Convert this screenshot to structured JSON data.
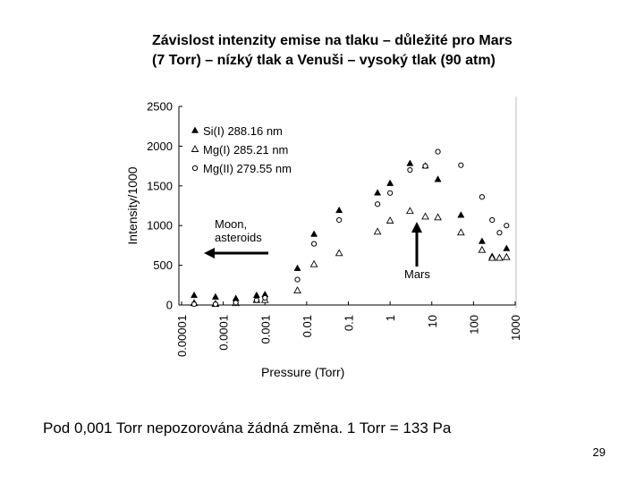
{
  "chart_data": {
    "type": "scatter",
    "title": [
      "Závislost intenzity emise na tlaku – důležité pro Mars",
      "(7 Torr) – nízký tlak a Venuši – vysoký tlak (90 atm)"
    ],
    "x_label": "Pressure (Torr)",
    "y_label": "Intensity/1000",
    "log_x": true,
    "xlim": [
      1e-05,
      1000
    ],
    "xticks": [
      1e-05,
      0.0001,
      0.001,
      0.01,
      0.1,
      1,
      10,
      100,
      1000
    ],
    "ylim": [
      0,
      2500
    ],
    "yticks": [
      0,
      500,
      1000,
      1500,
      2000,
      2500
    ],
    "legend": "top-left",
    "annotations": [
      [
        "Moon,",
        "asteroids"
      ],
      [
        "Mars"
      ]
    ],
    "series": [
      {
        "name": "Si(I) 288.16 nm",
        "color": "#000000",
        "marker": "triangle-filled",
        "x": [
          2e-05,
          6.5e-05,
          0.0002,
          0.00063,
          0.001,
          0.006,
          0.015,
          0.06,
          0.5,
          1,
          3,
          7,
          14,
          50,
          160,
          280,
          620
        ],
        "values": [
          120,
          100,
          80,
          120,
          130,
          460,
          890,
          1190,
          1410,
          1530,
          1780,
          1750,
          1580,
          1130,
          800,
          610,
          710
        ]
      },
      {
        "name": "Mg(I) 285.21 nm",
        "color": "#000000",
        "marker": "triangle-open",
        "x": [
          2e-05,
          6.5e-05,
          0.0002,
          0.00063,
          0.001,
          0.006,
          0.015,
          0.06,
          0.5,
          1,
          3,
          7,
          14,
          50,
          160,
          280,
          420,
          620
        ],
        "values": [
          20,
          10,
          20,
          60,
          60,
          180,
          510,
          650,
          920,
          1060,
          1180,
          1110,
          1100,
          910,
          690,
          590,
          590,
          600
        ]
      },
      {
        "name": "Mg(II) 279.55 nm",
        "color": "#000000",
        "marker": "circle-open",
        "x": [
          2e-05,
          6.5e-05,
          0.0002,
          0.00063,
          0.001,
          0.006,
          0.015,
          0.06,
          0.5,
          1,
          3,
          7,
          14,
          50,
          160,
          280,
          420,
          620
        ],
        "values": [
          10,
          10,
          30,
          60,
          90,
          320,
          770,
          1070,
          1270,
          1410,
          1700,
          1750,
          1930,
          1760,
          1360,
          1070,
          910,
          1000
        ]
      }
    ]
  },
  "slide": {
    "caption": "Pod 0,001 Torr nepozorována žádná změna. 1 Torr = 133 Pa",
    "page_number": 29
  }
}
